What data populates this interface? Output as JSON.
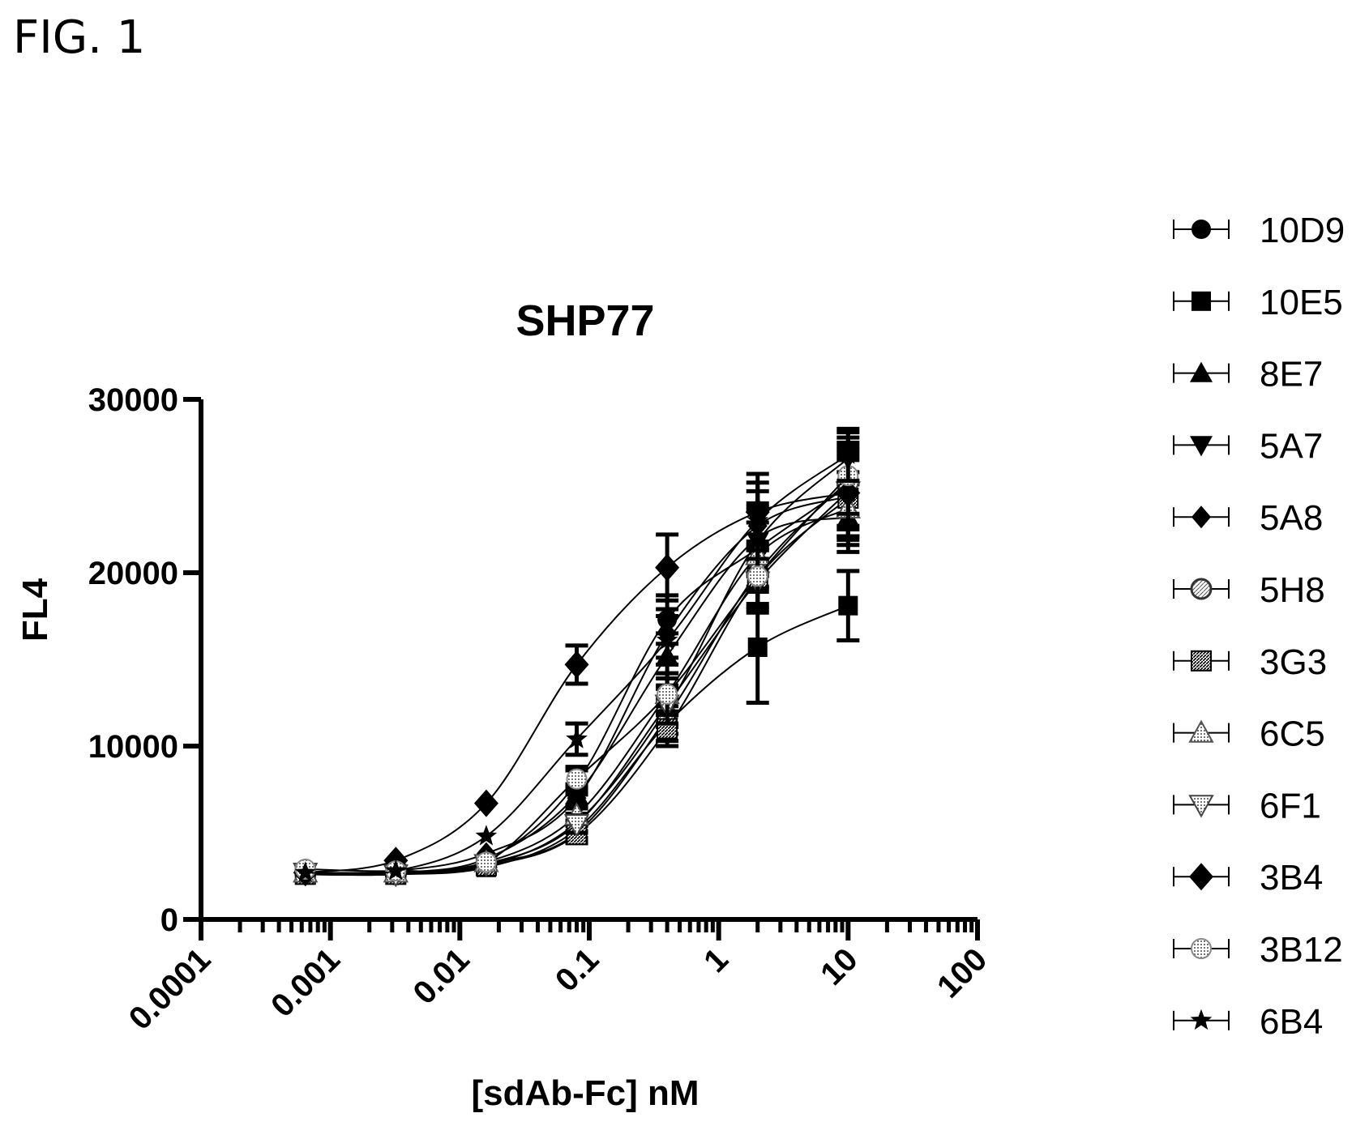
{
  "figure_label": "FIG. 1",
  "chart_data": {
    "type": "scatter",
    "title": "SHP77",
    "xlabel": "[sdAb-Fc] nM",
    "ylabel": "FL4",
    "x_scale": "log",
    "xlim": [
      0.0001,
      100
    ],
    "ylim": [
      0,
      30000
    ],
    "x_ticks": [
      0.0001,
      0.001,
      0.01,
      0.1,
      1,
      10,
      100
    ],
    "x_tick_labels": [
      "0.0001",
      "0.001",
      "0.01",
      "0.1",
      "1",
      "10",
      "100"
    ],
    "y_ticks": [
      0,
      10000,
      20000,
      30000
    ],
    "y_tick_labels": [
      "0",
      "10000",
      "20000",
      "30000"
    ],
    "legend_position": "right",
    "grid": false,
    "x": [
      0.00064,
      0.0032,
      0.016,
      0.08,
      0.4,
      2,
      10
    ],
    "series": [
      {
        "name": "10D9",
        "marker": "circle",
        "values": [
          2600,
          2700,
          3400,
          7900,
          17300,
          21400,
          25000
        ],
        "errors": [
          200,
          200,
          300,
          700,
          1400,
          2200,
          2500
        ]
      },
      {
        "name": "10E5",
        "marker": "square",
        "values": [
          2600,
          2600,
          3000,
          5200,
          11300,
          15700,
          18100
        ],
        "errors": [
          200,
          200,
          300,
          500,
          1000,
          3200,
          2000
        ]
      },
      {
        "name": "8E7",
        "marker": "triangle-up",
        "values": [
          2700,
          2700,
          3500,
          7200,
          15200,
          22000,
          23200
        ],
        "errors": [
          200,
          200,
          300,
          600,
          1300,
          2000,
          2000
        ]
      },
      {
        "name": "5A7",
        "marker": "triangle-down",
        "values": [
          2600,
          2600,
          3100,
          5600,
          12200,
          21800,
          26600
        ],
        "errors": [
          200,
          200,
          300,
          500,
          1100,
          2000,
          1500
        ]
      },
      {
        "name": "5A8",
        "marker": "diamond",
        "values": [
          2700,
          2800,
          3800,
          7000,
          16500,
          22700,
          24400
        ],
        "errors": [
          200,
          200,
          300,
          600,
          1400,
          2000,
          2500
        ]
      },
      {
        "name": "5H8",
        "marker": "circle-hatched",
        "values": [
          2700,
          2600,
          3200,
          5000,
          11700,
          20000,
          25300
        ],
        "errors": [
          200,
          200,
          300,
          500,
          1000,
          1800,
          2000
        ]
      },
      {
        "name": "3G3",
        "marker": "square-hatched",
        "values": [
          2600,
          2600,
          3100,
          4900,
          11000,
          19700,
          24300
        ],
        "errors": [
          200,
          200,
          300,
          500,
          1000,
          1800,
          2200
        ]
      },
      {
        "name": "6C5",
        "marker": "triangle-up-dotted",
        "values": [
          2700,
          2700,
          3300,
          6000,
          13000,
          21000,
          23700
        ],
        "errors": [
          200,
          200,
          300,
          500,
          1200,
          1900,
          2100
        ]
      },
      {
        "name": "6F1",
        "marker": "triangle-down-dotted",
        "values": [
          2700,
          2600,
          3200,
          5500,
          12400,
          19500,
          24700
        ],
        "errors": [
          200,
          200,
          300,
          500,
          1100,
          1800,
          2000
        ]
      },
      {
        "name": "3B4",
        "marker": "diamond-large",
        "values": [
          2700,
          3400,
          6700,
          14700,
          20300,
          23500,
          24600
        ],
        "errors": [
          200,
          200,
          300,
          1100,
          1900,
          2200,
          2500
        ]
      },
      {
        "name": "3B12",
        "marker": "circle-dotted",
        "values": [
          2900,
          2800,
          3300,
          8100,
          13000,
          19800,
          25600
        ],
        "errors": [
          200,
          200,
          300,
          700,
          1200,
          1800,
          2200
        ]
      },
      {
        "name": "6B4",
        "marker": "star",
        "values": [
          2700,
          2800,
          4800,
          10400,
          16100,
          23000,
          26800
        ],
        "errors": [
          200,
          200,
          300,
          900,
          1400,
          2200,
          1500
        ]
      }
    ]
  }
}
